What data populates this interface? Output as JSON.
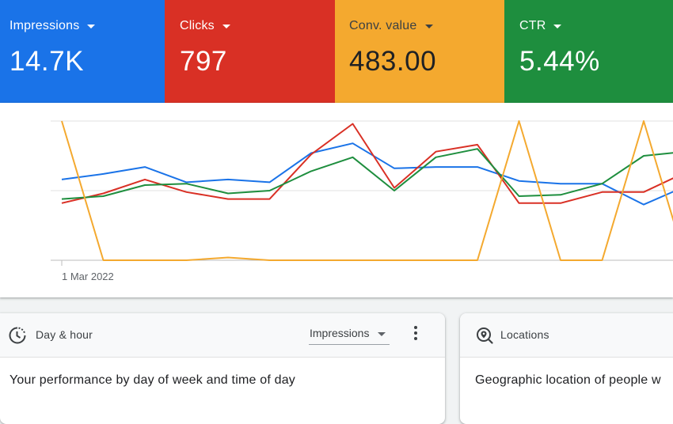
{
  "metrics": [
    {
      "name": "Impressions",
      "value": "14.7K",
      "color": "#1a73e8"
    },
    {
      "name": "Clicks",
      "value": "797",
      "color": "#d93025"
    },
    {
      "name": "Conv. value",
      "value": "483.00",
      "color": "#f4a92f"
    },
    {
      "name": "CTR",
      "value": "5.44%",
      "color": "#1e8e3e"
    }
  ],
  "chart_data": {
    "type": "line",
    "x_label_first": "1 Mar 2022",
    "grid": true,
    "series": [
      {
        "color": "#1a73e8",
        "values": [
          0.58,
          0.62,
          0.67,
          0.56,
          0.58,
          0.56,
          0.77,
          0.84,
          0.66,
          0.67,
          0.67,
          0.57,
          0.55,
          0.55,
          0.4,
          0.53
        ]
      },
      {
        "color": "#d93025",
        "values": [
          0.41,
          0.48,
          0.58,
          0.49,
          0.44,
          0.44,
          0.76,
          0.98,
          0.52,
          0.78,
          0.83,
          0.41,
          0.41,
          0.49,
          0.49,
          0.63
        ]
      },
      {
        "color": "#1e8e3e",
        "values": [
          0.44,
          0.46,
          0.54,
          0.55,
          0.48,
          0.5,
          0.64,
          0.74,
          0.5,
          0.74,
          0.8,
          0.46,
          0.47,
          0.55,
          0.75,
          0.78
        ]
      },
      {
        "color": "#f4a92f",
        "values": [
          1.0,
          0.0,
          0.0,
          0.0,
          0.02,
          0.0,
          0.0,
          0.0,
          0.0,
          0.0,
          0.0,
          1.0,
          0.0,
          0.0,
          1.0,
          0.0
        ]
      }
    ]
  },
  "day_hour_card": {
    "title": "Day & hour",
    "metric_select": "Impressions",
    "subtitle": "Your performance by day of week and time of day"
  },
  "locations_card": {
    "title": "Locations",
    "subtitle": "Geographic location of people w"
  }
}
